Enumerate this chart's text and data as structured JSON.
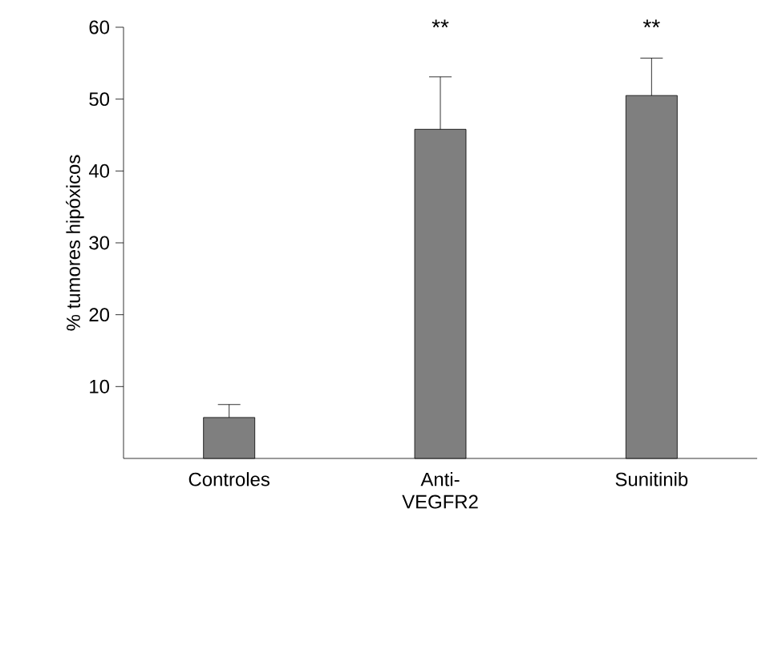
{
  "chart_data": {
    "type": "bar",
    "ylabel": "% tumores hipóxicos",
    "categories": [
      "Controles",
      "Anti-VEGFR2",
      "Sunitinib"
    ],
    "values": [
      5.7,
      45.8,
      50.5
    ],
    "errors": [
      [
        5.7,
        7.5
      ],
      [
        45.8,
        53.1
      ],
      [
        50.5,
        55.7
      ]
    ],
    "color": "#7f7f7f",
    "ylim": [
      0,
      60
    ],
    "yticks": [
      10,
      20,
      30,
      40,
      50,
      60
    ],
    "grid": false,
    "annotations": [
      "**",
      "**"
    ]
  }
}
